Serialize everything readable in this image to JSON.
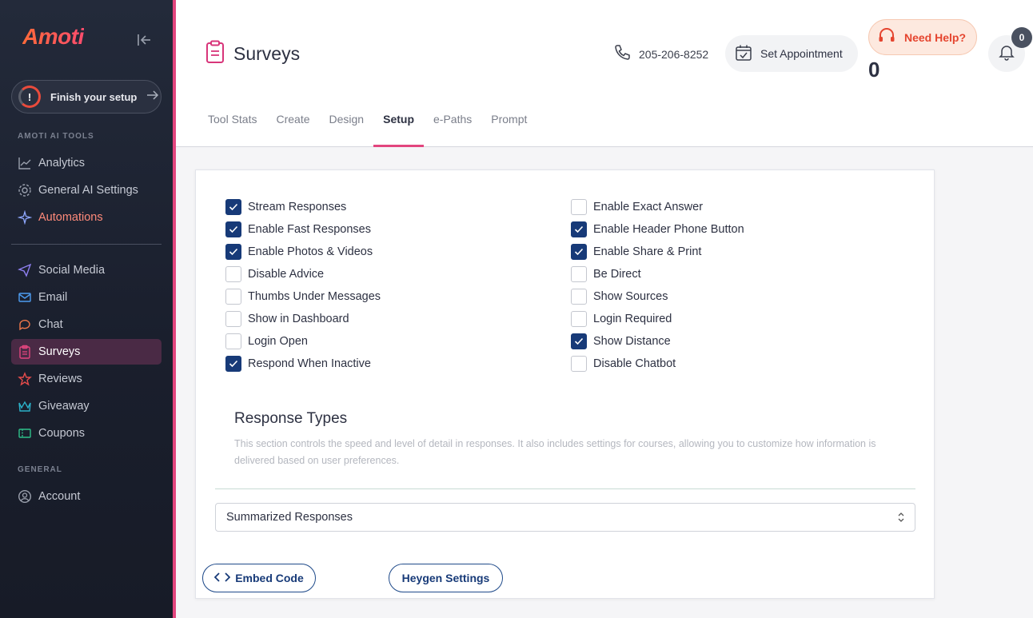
{
  "app": {
    "logo": "Amoti",
    "finish_setup": "Finish your setup",
    "finish_setup_icon": "!"
  },
  "sidebar": {
    "section_tools": "AMOTI AI TOOLS",
    "section_general": "GENERAL",
    "tools": [
      {
        "label": "Analytics",
        "icon": "chart-line-icon"
      },
      {
        "label": "General AI Settings",
        "icon": "gear-icon"
      },
      {
        "label": "Automations",
        "icon": "sparkle-icon"
      }
    ],
    "channels": [
      {
        "label": "Social Media",
        "icon": "send-icon"
      },
      {
        "label": "Email",
        "icon": "mail-icon"
      },
      {
        "label": "Chat",
        "icon": "chat-icon"
      },
      {
        "label": "Surveys",
        "icon": "clipboard-icon"
      },
      {
        "label": "Reviews",
        "icon": "star-icon"
      },
      {
        "label": "Giveaway",
        "icon": "crown-icon"
      },
      {
        "label": "Coupons",
        "icon": "ticket-icon"
      }
    ],
    "general": [
      {
        "label": "Account",
        "icon": "user-icon"
      }
    ]
  },
  "header": {
    "title": "Surveys",
    "phone": "205-206-8252",
    "set_appointment": "Set Appointment",
    "need_help": "Need Help?",
    "help_count": "0",
    "notification_count": "0"
  },
  "tabs": [
    {
      "label": "Tool Stats"
    },
    {
      "label": "Create"
    },
    {
      "label": "Design"
    },
    {
      "label": "Setup",
      "active": true
    },
    {
      "label": "e-Paths"
    },
    {
      "label": "Prompt"
    }
  ],
  "settings": {
    "left": [
      {
        "label": "Stream Responses",
        "checked": true
      },
      {
        "label": "Enable Fast Responses",
        "checked": true
      },
      {
        "label": "Enable Photos & Videos",
        "checked": true
      },
      {
        "label": "Disable Advice",
        "checked": false
      },
      {
        "label": "Thumbs Under Messages",
        "checked": false
      },
      {
        "label": "Show in Dashboard",
        "checked": false
      },
      {
        "label": "Login Open",
        "checked": false
      },
      {
        "label": "Respond When Inactive",
        "checked": true
      }
    ],
    "right": [
      {
        "label": "Enable Exact Answer",
        "checked": false
      },
      {
        "label": "Enable Header Phone Button",
        "checked": true
      },
      {
        "label": "Enable Share & Print",
        "checked": true
      },
      {
        "label": "Be Direct",
        "checked": false
      },
      {
        "label": "Show Sources",
        "checked": false
      },
      {
        "label": "Login Required",
        "checked": false
      },
      {
        "label": "Show Distance",
        "checked": true
      },
      {
        "label": "Disable Chatbot",
        "checked": false
      }
    ]
  },
  "response_types": {
    "title": "Response Types",
    "description": "This section controls the speed and level of detail in responses. It also includes settings for courses, allowing you to customize how information is delivered based on user preferences.",
    "selected": "Summarized Responses"
  },
  "buttons": {
    "embed_code": "Embed Code",
    "heygen_settings": "Heygen Settings"
  },
  "colors": {
    "accent": "#e2457e",
    "checkbox": "#173a78",
    "help": "#e5452f"
  }
}
